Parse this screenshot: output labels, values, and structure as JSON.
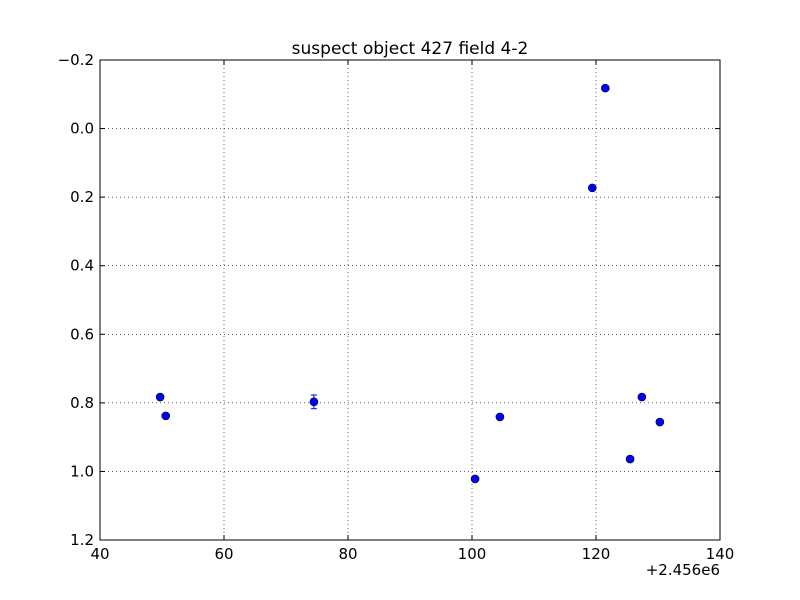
{
  "chart_data": {
    "type": "scatter",
    "title": "suspect object 427 field 4-2",
    "x_offset_label": "+2.456e6",
    "series": [
      {
        "color": "#0000ff",
        "x": [
          49.7,
          50.6,
          74.5,
          100.5,
          104.5,
          119.4,
          121.5,
          125.5,
          127.4,
          130.3
        ],
        "values": [
          0.783,
          0.838,
          0.797,
          1.022,
          0.841,
          0.173,
          -0.118,
          0.964,
          0.783,
          0.856
        ],
        "errors": [
          0.006,
          0.006,
          0.02,
          0.006,
          0.006,
          0.006,
          0.006,
          0.006,
          0.006,
          0.006
        ]
      }
    ],
    "xlim": [
      40,
      140
    ],
    "xticks": [
      40,
      60,
      80,
      100,
      120,
      140
    ],
    "ylim": [
      1.2,
      -0.2
    ],
    "yticks": [
      {
        "value": -0.2,
        "label": "−0.2"
      },
      {
        "value": 0,
        "label": "0.0"
      },
      0.2,
      0.4,
      0.6,
      0.8,
      {
        "value": 1,
        "label": "1.0"
      },
      1.2
    ],
    "grid": true
  }
}
